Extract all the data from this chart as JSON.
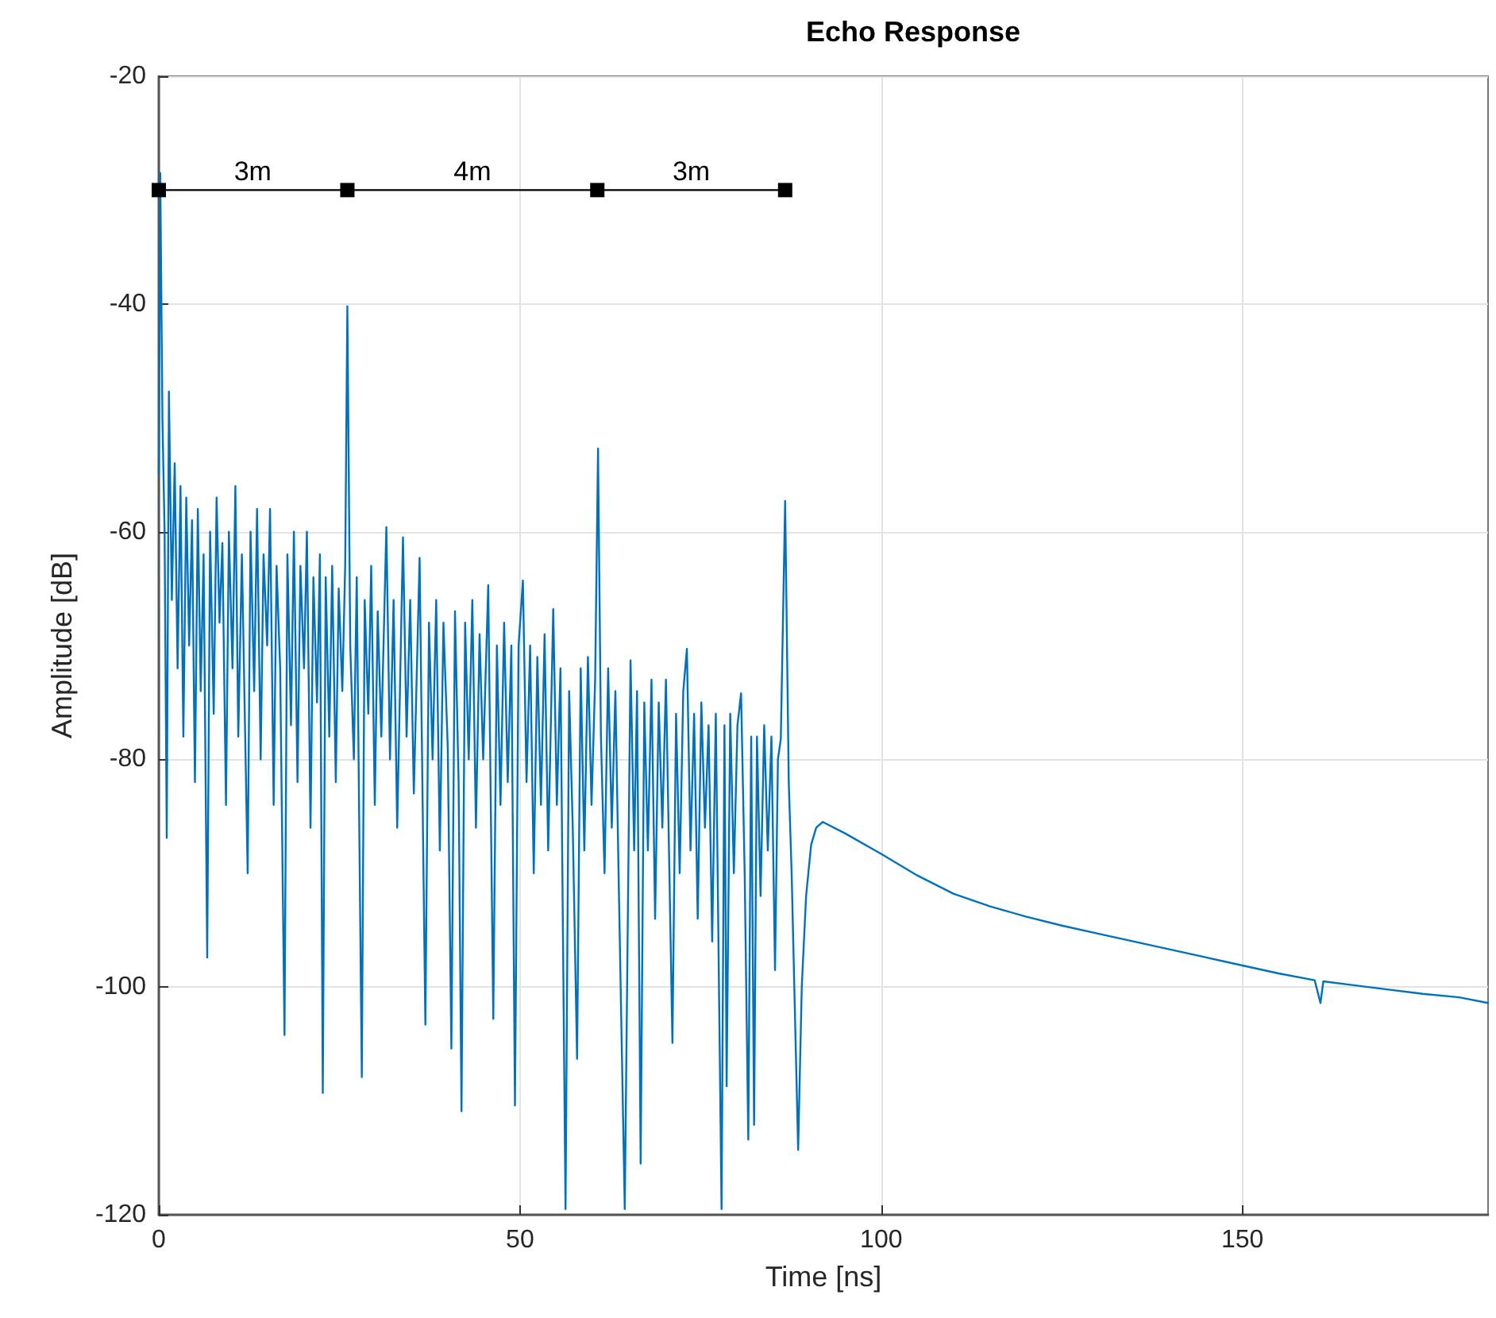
{
  "chart_data": {
    "type": "line",
    "title": "Echo Response",
    "xlabel": "Time [ns]",
    "ylabel": "Amplitude [dB]",
    "xlim": [
      0,
      184
    ],
    "ylim": [
      -120,
      -20
    ],
    "xticks": [
      0,
      50,
      100,
      150
    ],
    "yticks": [
      -120,
      -100,
      -80,
      -60,
      -40,
      -20
    ],
    "grid": true,
    "marker": "none",
    "line_style": "solid",
    "series": [
      {
        "color": "#0072bd",
        "x": [
          0,
          0.2,
          0.5,
          0.8,
          1.1,
          1.4,
          1.8,
          2.2,
          2.6,
          3.0,
          3.4,
          3.8,
          4.2,
          4.6,
          5.0,
          5.4,
          5.8,
          6.2,
          6.7,
          7.1,
          7.6,
          8.0,
          8.4,
          8.8,
          9.3,
          9.7,
          10.2,
          10.6,
          11.0,
          11.5,
          12.3,
          12.7,
          13.2,
          13.6,
          14.1,
          14.5,
          15.0,
          15.4,
          15.9,
          16.3,
          16.8,
          17.4,
          17.8,
          18.3,
          18.7,
          19.2,
          19.6,
          20.1,
          20.5,
          21.0,
          21.4,
          21.9,
          22.3,
          22.7,
          23.1,
          23.6,
          24.0,
          24.5,
          24.9,
          25.4,
          25.8,
          26.1,
          26.5,
          27.0,
          27.4,
          28.1,
          28.5,
          29.0,
          29.4,
          29.9,
          30.3,
          30.8,
          31.5,
          32.0,
          32.5,
          33.0,
          33.8,
          34.3,
          34.8,
          35.3,
          36.1,
          36.9,
          37.4,
          37.9,
          38.4,
          38.9,
          39.4,
          40.0,
          40.5,
          41.0,
          41.5,
          41.9,
          42.4,
          42.9,
          43.4,
          43.9,
          44.4,
          44.9,
          45.6,
          46.3,
          46.8,
          47.3,
          47.8,
          48.3,
          48.8,
          49.3,
          49.8,
          50.4,
          50.9,
          51.4,
          51.9,
          52.4,
          52.9,
          53.4,
          53.9,
          54.6,
          55.1,
          55.6,
          56.3,
          56.8,
          57.3,
          57.9,
          58.4,
          58.9,
          59.4,
          59.9,
          60.4,
          60.8,
          61.2,
          61.7,
          62.2,
          62.7,
          63.2,
          63.7,
          64.5,
          65.3,
          65.8,
          66.2,
          66.7,
          67.2,
          67.7,
          68.2,
          68.7,
          69.2,
          69.7,
          70.2,
          71.1,
          71.6,
          72.1,
          72.6,
          73.1,
          73.6,
          74.1,
          74.6,
          75.1,
          75.6,
          76.1,
          76.6,
          77.1,
          77.9,
          78.3,
          78.6,
          79.1,
          79.6,
          80.1,
          80.6,
          81.1,
          81.6,
          82.0,
          82.4,
          82.8,
          83.3,
          83.8,
          84.3,
          84.8,
          85.3,
          85.7,
          86.1,
          86.7,
          87.2,
          87.6,
          88.5,
          89.0,
          89.6,
          90.3,
          91.0,
          91.9,
          95,
          100,
          105,
          110,
          115,
          120,
          125,
          130,
          135,
          140,
          145,
          150,
          155,
          160,
          160.8,
          161.2,
          165,
          170,
          175,
          180,
          184
        ],
        "values": [
          -55,
          -28.5,
          -50,
          -60,
          -86.9,
          -47.7,
          -66,
          -54,
          -72,
          -56,
          -78,
          -57,
          -70,
          -59,
          -82,
          -58,
          -74,
          -62,
          -97.4,
          -60,
          -76,
          -57,
          -68,
          -61,
          -84,
          -60,
          -72,
          -56,
          -78,
          -62,
          -90,
          -60,
          -74,
          -58,
          -80,
          -62,
          -70,
          -58,
          -84,
          -63,
          -72,
          -104.2,
          -62,
          -77,
          -60,
          -82,
          -63,
          -72,
          -60,
          -86,
          -64,
          -75,
          -62,
          -109.3,
          -64,
          -78,
          -63,
          -82,
          -65,
          -74,
          -63,
          -40.2,
          -70,
          -80,
          -64,
          -107.9,
          -66,
          -76,
          -63,
          -84,
          -67,
          -78,
          -59.6,
          -80,
          -66,
          -86,
          -60.5,
          -78,
          -66,
          -83,
          -62.3,
          -103.3,
          -68,
          -80,
          -66,
          -88,
          -68,
          -79,
          -105.4,
          -67,
          -82,
          -110.9,
          -68,
          -80,
          -66,
          -86,
          -69,
          -80,
          -64.7,
          -102.8,
          -70,
          -84,
          -68,
          -82,
          -70,
          -110.4,
          -70,
          -64.3,
          -82,
          -70,
          -90,
          -71,
          -84,
          -69,
          -88,
          -66.8,
          -84,
          -72,
          -119.5,
          -74,
          -86,
          -106.3,
          -72,
          -88,
          -71,
          -84,
          -73,
          -52.7,
          -78,
          -90,
          -72,
          -86,
          -74,
          -92,
          -119.5,
          -71.3,
          -88,
          -74,
          -115.5,
          -75,
          -88,
          -73,
          -94,
          -75,
          -86,
          -73,
          -104.9,
          -76,
          -90,
          -74,
          -70.3,
          -88,
          -76,
          -94,
          -75,
          -86,
          -77,
          -96,
          -76,
          -119.5,
          -77,
          -108.7,
          -76,
          -90,
          -77,
          -74.2,
          -90,
          -113.4,
          -78,
          -112.1,
          -78,
          -92,
          -77,
          -88,
          -78,
          -98.5,
          -80,
          -78.2,
          -57.3,
          -82,
          -90,
          -114.3,
          -100,
          -92,
          -87.5,
          -86,
          -85.5,
          -86.5,
          -88.3,
          -90.2,
          -91.8,
          -92.9,
          -93.8,
          -94.6,
          -95.3,
          -96.0,
          -96.7,
          -97.4,
          -98.1,
          -98.8,
          -99.4,
          -101.4,
          -99.5,
          -99.8,
          -100.2,
          -100.6,
          -100.9,
          -101.4
        ]
      },
      {
        "color": "#000000",
        "marker": "square",
        "x": [
          0,
          26.1,
          60.7,
          86.7
        ],
        "values": [
          -30,
          -30,
          -30,
          -30
        ]
      }
    ],
    "annotations": [
      {
        "text": "3m",
        "x": 13,
        "y": -30
      },
      {
        "text": "4m",
        "x": 43.4,
        "y": -30
      },
      {
        "text": "3m",
        "x": 73.7,
        "y": -30
      }
    ]
  }
}
